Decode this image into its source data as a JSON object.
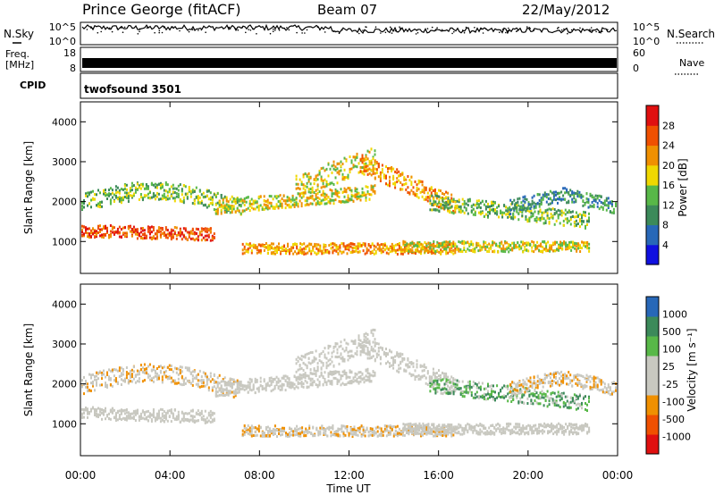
{
  "header": {
    "station": "Prince George (fitACF)",
    "beam": "Beam 07",
    "date": "22/May/2012"
  },
  "top_panels": {
    "nsky_label": "N.Sky",
    "nsearch_label": "N.Search",
    "nsky_ticks": [
      "10^5",
      "10^0"
    ],
    "nsearch_ticks": [
      "10^5",
      "10^0"
    ],
    "freq_label_1": "Freq.",
    "freq_label_2": "[MHz]",
    "freq_ticks": [
      "18",
      "8"
    ],
    "nave_label": "Nave",
    "nave_ticks": [
      "60",
      "0"
    ],
    "cpid_label": "CPID",
    "cpid_value": "twofsound 3501"
  },
  "colors": {
    "power_scale": [
      "#1010e0",
      "#2868b8",
      "#3c8a5a",
      "#58b848",
      "#f0d800",
      "#f09000",
      "#f05000",
      "#e01010"
    ],
    "velocity_scale": [
      "#e01010",
      "#f05000",
      "#f09000",
      "#c8c8c0",
      "#c8c8c0",
      "#58b848",
      "#3c8a5a",
      "#2868b8"
    ]
  },
  "chart_data": [
    {
      "type": "heatmap",
      "name": "power",
      "ylabel": "Slant Range [km]",
      "yticks": [
        "4000",
        "3000",
        "2000",
        "1000"
      ],
      "colorbar_label": "Power [dB]",
      "colorbar_ticks": [
        "28",
        "24",
        "20",
        "16",
        "12",
        "8",
        "4"
      ],
      "x_unit": "hours UT",
      "ylim": [
        200,
        4500
      ]
    },
    {
      "type": "heatmap",
      "name": "velocity",
      "ylabel": "Slant Range [km]",
      "yticks": [
        "4000",
        "3000",
        "2000",
        "1000"
      ],
      "colorbar_label": "Velocity [m s⁻¹]",
      "colorbar_ticks": [
        "1000",
        "500",
        "100",
        "25",
        "-25",
        "-100",
        "-500",
        "-1000"
      ],
      "x_unit": "hours UT",
      "ylim": [
        200,
        4500
      ]
    }
  ],
  "xaxis": {
    "ticks": [
      "00:00",
      "04:00",
      "08:00",
      "12:00",
      "16:00",
      "20:00",
      "00:00"
    ],
    "label": "Time UT"
  }
}
